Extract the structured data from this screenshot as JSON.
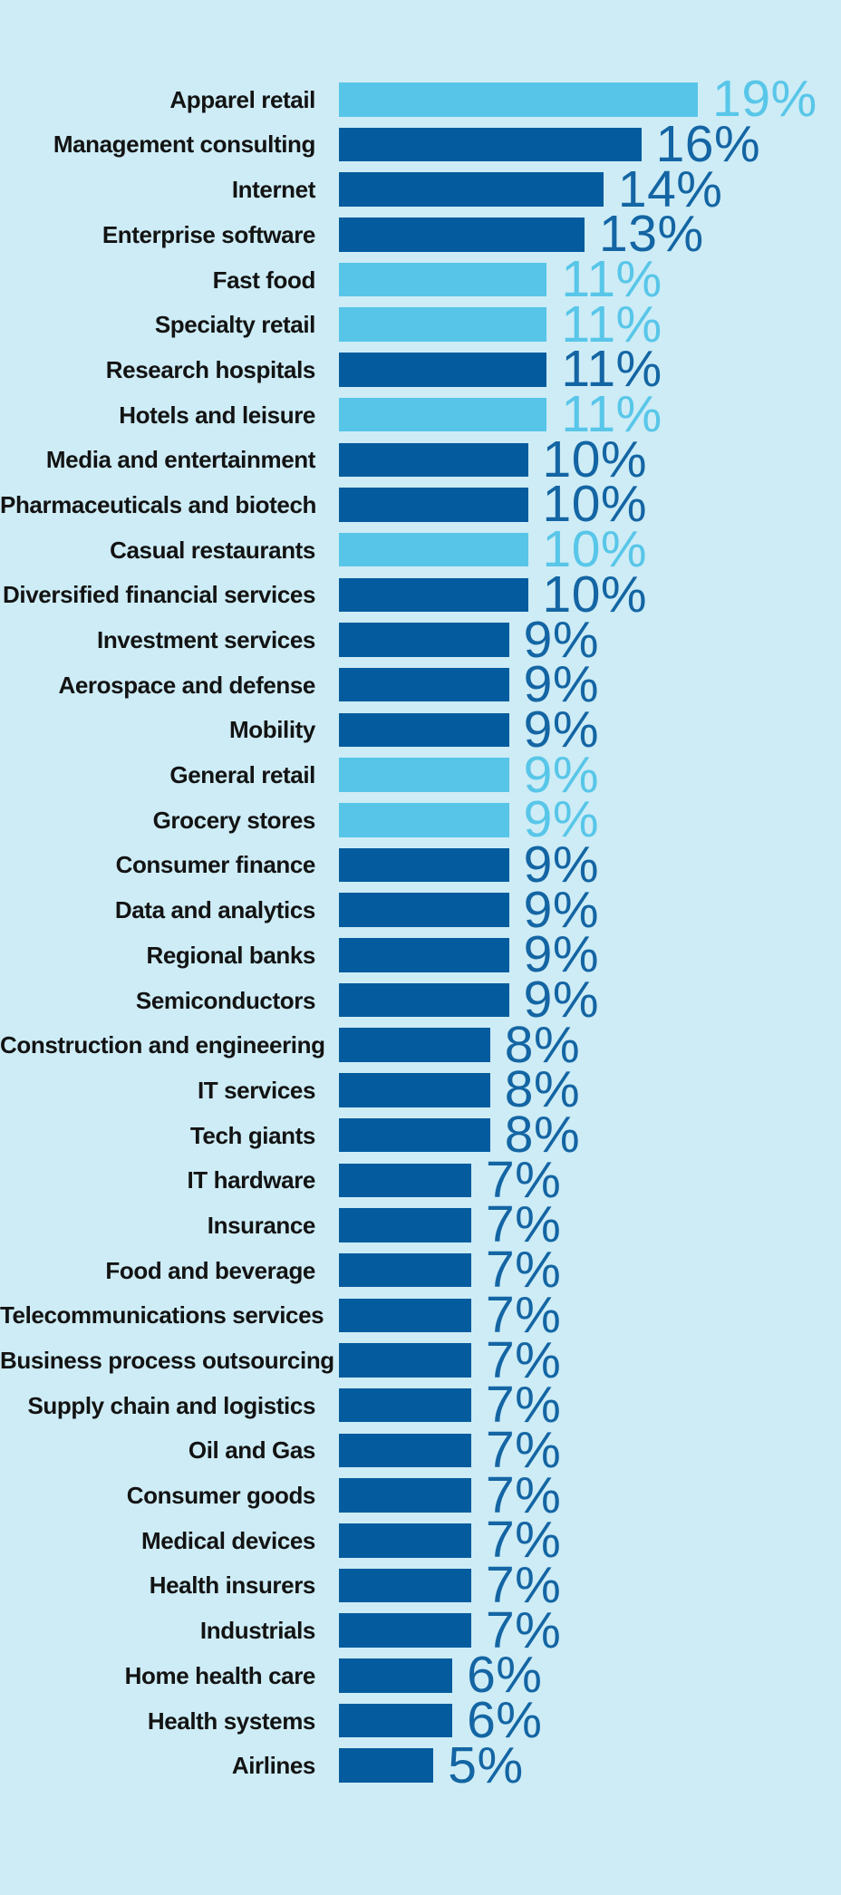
{
  "background": "#cdecf6",
  "palette": {
    "bar_dark": "#045c9e",
    "bar_light": "#57c5e8",
    "text_dark": "#1465a3",
    "text_light": "#58c6e8",
    "label_color": "#131313"
  },
  "chart_data": {
    "type": "bar",
    "orientation": "horizontal",
    "title": "",
    "xlabel": "",
    "ylabel": "",
    "unit": "%",
    "xlim": [
      0,
      19
    ],
    "grid": false,
    "legend": "none",
    "value_label_position": "right-of-bar",
    "rows": [
      {
        "label": "Apparel retail",
        "value": 19,
        "color": "light"
      },
      {
        "label": "Management consulting",
        "value": 16,
        "color": "dark"
      },
      {
        "label": "Internet",
        "value": 14,
        "color": "dark"
      },
      {
        "label": "Enterprise software",
        "value": 13,
        "color": "dark"
      },
      {
        "label": "Fast food",
        "value": 11,
        "color": "light"
      },
      {
        "label": "Specialty retail",
        "value": 11,
        "color": "light"
      },
      {
        "label": "Research hospitals",
        "value": 11,
        "color": "dark"
      },
      {
        "label": "Hotels and leisure",
        "value": 11,
        "color": "light"
      },
      {
        "label": "Media and entertainment",
        "value": 10,
        "color": "dark"
      },
      {
        "label": "Pharmaceuticals and biotech",
        "value": 10,
        "color": "dark"
      },
      {
        "label": "Casual restaurants",
        "value": 10,
        "color": "light"
      },
      {
        "label": "Diversified financial services",
        "value": 10,
        "color": "dark"
      },
      {
        "label": "Investment services",
        "value": 9,
        "color": "dark"
      },
      {
        "label": "Aerospace and defense",
        "value": 9,
        "color": "dark"
      },
      {
        "label": "Mobility",
        "value": 9,
        "color": "dark"
      },
      {
        "label": "General retail",
        "value": 9,
        "color": "light"
      },
      {
        "label": "Grocery stores",
        "value": 9,
        "color": "light"
      },
      {
        "label": "Consumer finance",
        "value": 9,
        "color": "dark"
      },
      {
        "label": "Data and analytics",
        "value": 9,
        "color": "dark"
      },
      {
        "label": "Regional banks",
        "value": 9,
        "color": "dark"
      },
      {
        "label": "Semiconductors",
        "value": 9,
        "color": "dark"
      },
      {
        "label": "Construction and engineering",
        "value": 8,
        "color": "dark"
      },
      {
        "label": "IT services",
        "value": 8,
        "color": "dark"
      },
      {
        "label": "Tech giants",
        "value": 8,
        "color": "dark"
      },
      {
        "label": "IT hardware",
        "value": 7,
        "color": "dark"
      },
      {
        "label": "Insurance",
        "value": 7,
        "color": "dark"
      },
      {
        "label": "Food and beverage",
        "value": 7,
        "color": "dark"
      },
      {
        "label": "Telecommunications services",
        "value": 7,
        "color": "dark"
      },
      {
        "label": "Business process outsourcing",
        "value": 7,
        "color": "dark"
      },
      {
        "label": "Supply chain and logistics",
        "value": 7,
        "color": "dark"
      },
      {
        "label": "Oil and Gas",
        "value": 7,
        "color": "dark"
      },
      {
        "label": "Consumer goods",
        "value": 7,
        "color": "dark"
      },
      {
        "label": "Medical devices",
        "value": 7,
        "color": "dark"
      },
      {
        "label": "Health insurers",
        "value": 7,
        "color": "dark"
      },
      {
        "label": "Industrials",
        "value": 7,
        "color": "dark"
      },
      {
        "label": "Home health care",
        "value": 6,
        "color": "dark"
      },
      {
        "label": "Health systems",
        "value": 6,
        "color": "dark"
      },
      {
        "label": "Airlines",
        "value": 5,
        "color": "dark"
      }
    ]
  }
}
